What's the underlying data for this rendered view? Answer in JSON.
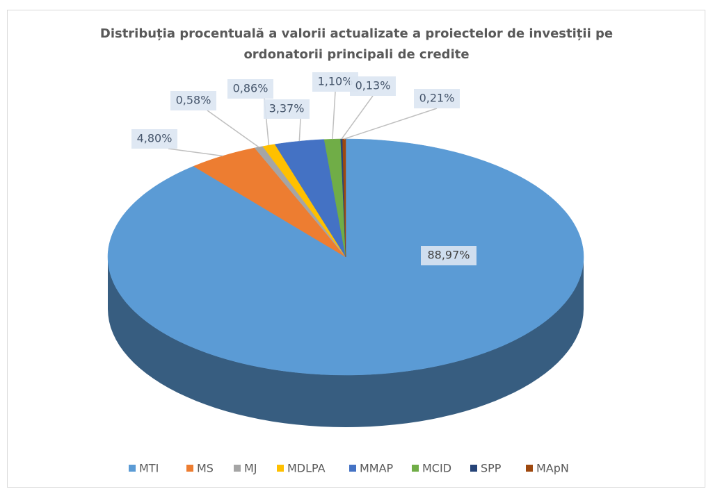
{
  "chart_data": {
    "type": "pie",
    "title": "Distribuția procentuală a valorii actualizate a proiectelor de investiții pe ordonatorii principali de credite",
    "categories": [
      "MTI",
      "MS",
      "MJ",
      "MDLPA",
      "MMAP",
      "MCID",
      "SPP",
      "MApN"
    ],
    "values": [
      88.97,
      4.8,
      0.58,
      0.86,
      3.37,
      1.1,
      0.13,
      0.21
    ],
    "value_labels": [
      "88,97%",
      "4,80%",
      "0,58%",
      "0,86%",
      "3,37%",
      "1,10%",
      "0,13%",
      "0,21%"
    ],
    "colors": [
      "#5b9bd5",
      "#ed7d31",
      "#a5a5a5",
      "#ffc000",
      "#4472c4",
      "#70ad47",
      "#264478",
      "#9e480e"
    ],
    "legend": "bottom"
  }
}
